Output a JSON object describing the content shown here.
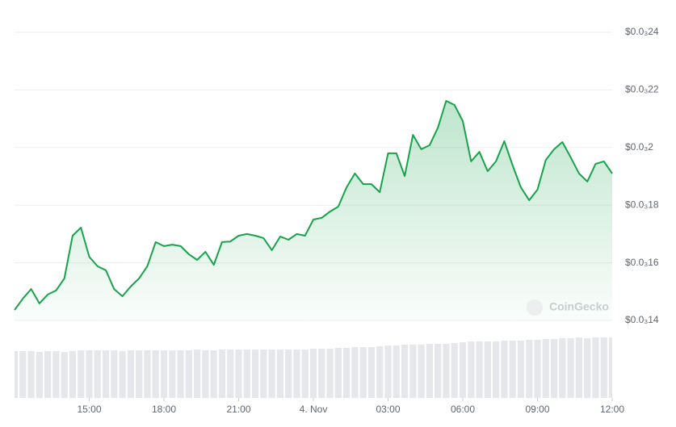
{
  "chart_data": {
    "type": "line",
    "color": "#16a34a",
    "grid": true,
    "watermark": "CoinGecko",
    "xlim": [
      0,
      1440
    ],
    "xticks": [
      {
        "value": 180,
        "label": "15:00"
      },
      {
        "value": 360,
        "label": "18:00"
      },
      {
        "value": 540,
        "label": "21:00"
      },
      {
        "value": 720,
        "label": "4. Nov"
      },
      {
        "value": 900,
        "label": "03:00"
      },
      {
        "value": 1080,
        "label": "06:00"
      },
      {
        "value": 1260,
        "label": "09:00"
      },
      {
        "value": 1440,
        "label": "12:00"
      }
    ],
    "ylim": [
      0.00014,
      0.00024
    ],
    "yticks": [
      {
        "value": 0.00014,
        "label": "$0.0₃14"
      },
      {
        "value": 0.00016,
        "label": "$0.0₃16"
      },
      {
        "value": 0.00018,
        "label": "$0.0₃18"
      },
      {
        "value": 0.0002,
        "label": "$0.0₃2"
      },
      {
        "value": 0.00022,
        "label": "$0.0₃22"
      },
      {
        "value": 0.00024,
        "label": "$0.0₃24"
      }
    ],
    "x": [
      0,
      20,
      40,
      60,
      80,
      100,
      120,
      140,
      160,
      180,
      200,
      220,
      240,
      260,
      280,
      300,
      320,
      340,
      360,
      380,
      400,
      420,
      440,
      460,
      480,
      500,
      520,
      540,
      560,
      580,
      600,
      620,
      640,
      660,
      680,
      700,
      720,
      740,
      760,
      780,
      800,
      820,
      840,
      860,
      880,
      900,
      920,
      940,
      960,
      980,
      1000,
      1020,
      1040,
      1060,
      1080,
      1100,
      1120,
      1140,
      1160,
      1180,
      1200,
      1220,
      1240,
      1260,
      1280,
      1300,
      1320,
      1340,
      1360,
      1380,
      1400,
      1420,
      1440
    ],
    "values": [
      0.0001436,
      0.0001476,
      0.0001509,
      0.0001459,
      0.000149,
      0.0001504,
      0.0001546,
      0.0001694,
      0.0001722,
      0.0001621,
      0.0001588,
      0.0001574,
      0.0001509,
      0.0001484,
      0.0001518,
      0.0001546,
      0.0001588,
      0.0001672,
      0.0001658,
      0.0001663,
      0.0001658,
      0.000163,
      0.000161,
      0.0001638,
      0.0001593,
      0.0001672,
      0.0001674,
      0.0001694,
      0.00017,
      0.0001694,
      0.0001686,
      0.0001644,
      0.0001691,
      0.000168,
      0.00017,
      0.0001694,
      0.000175,
      0.0001756,
      0.0001778,
      0.0001795,
      0.0001862,
      0.000191,
      0.0001873,
      0.0001873,
      0.0001845,
      0.000198,
      0.000198,
      0.0001901,
      0.0002044,
      0.0001994,
      0.0002008,
      0.0002069,
      0.0002162,
      0.0002148,
      0.0002092,
      0.0001952,
      0.0001985,
      0.0001918,
      0.0001952,
      0.0002022,
      0.0001938,
      0.0001862,
      0.0001817,
      0.0001854,
      0.0001957,
      0.0001994,
      0.0002019,
      0.0001966,
      0.000191,
      0.0001882,
      0.0001943,
      0.0001952,
      0.000191
    ],
    "volume_color": "#e5e7ea",
    "volume": [
      58,
      58,
      58,
      57,
      58,
      58,
      57,
      58,
      59,
      59,
      59,
      59,
      59,
      58,
      59,
      59,
      59,
      59,
      59,
      59,
      59,
      59,
      60,
      59,
      59,
      60,
      60,
      60,
      60,
      60,
      60,
      60,
      60,
      60,
      60,
      60,
      61,
      61,
      61,
      62,
      62,
      63,
      63,
      63,
      64,
      65,
      65,
      66,
      66,
      66,
      67,
      67,
      67,
      68,
      69,
      70,
      70,
      70,
      70,
      71,
      71,
      71,
      72,
      72,
      73,
      73,
      74,
      74,
      75,
      74,
      75,
      75,
      75
    ]
  }
}
